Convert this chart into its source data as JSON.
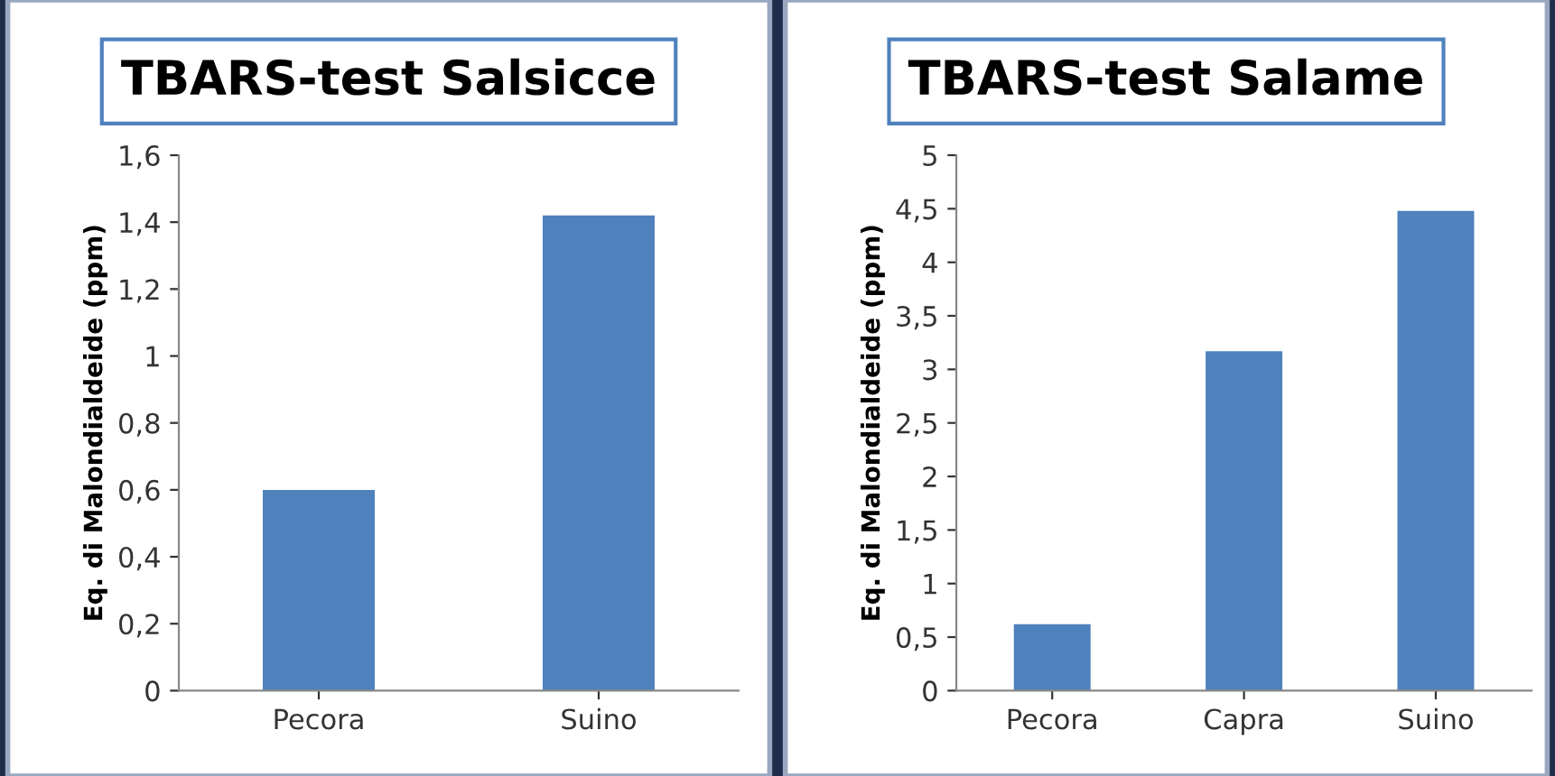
{
  "chart_data": [
    {
      "type": "bar",
      "title": "TBARS-test Salsicce",
      "ylabel": "Eq. di Malondialdeide (ppm)",
      "categories": [
        "Pecora",
        "Suino"
      ],
      "values": [
        0.6,
        1.42
      ],
      "color": "#4f81bd",
      "ylim": [
        0,
        1.6
      ],
      "yticks": [
        0,
        {
          "value": 0.2,
          "label": "0,2"
        },
        {
          "value": 0.4,
          "label": "0,4"
        },
        {
          "value": 0.6,
          "label": "0,6"
        },
        {
          "value": 0.8,
          "label": "0,8"
        },
        1,
        {
          "value": 1.2,
          "label": "1,2"
        },
        {
          "value": 1.4,
          "label": "1,4"
        },
        {
          "value": 1.6,
          "label": "1,6"
        }
      ]
    },
    {
      "type": "bar",
      "title": "TBARS-test Salame",
      "ylabel": "Eq. di Malondialdeide (ppm)",
      "categories": [
        "Pecora",
        "Capra",
        "Suino"
      ],
      "values": [
        0.62,
        3.17,
        4.48
      ],
      "color": "#4f81bd",
      "ylim": [
        0,
        5
      ],
      "yticks": [
        0,
        {
          "value": 0.5,
          "label": "0,5"
        },
        1,
        {
          "value": 1.5,
          "label": "1,5"
        },
        2,
        {
          "value": 2.5,
          "label": "2,5"
        },
        3,
        {
          "value": 3.5,
          "label": "3,5"
        },
        4,
        {
          "value": 4.5,
          "label": "4,5"
        },
        5
      ]
    }
  ]
}
